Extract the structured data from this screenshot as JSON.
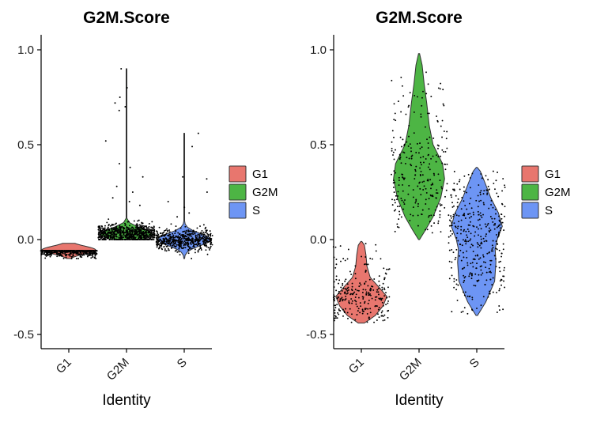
{
  "chart_data": [
    {
      "type": "violin",
      "title": "G2M.Score",
      "xlabel": "Identity",
      "ylabel": "",
      "ylim": [
        -0.58,
        1.05
      ],
      "yticks": [
        -0.5,
        0.0,
        0.5,
        1.0
      ],
      "ytick_labels": [
        "-0.5",
        "0.0",
        "0.5",
        "1.0"
      ],
      "categories": [
        "G1",
        "G2M",
        "S"
      ],
      "series": [
        {
          "name": "G1",
          "color": "#E8766E",
          "min": -0.1,
          "max": -0.02,
          "median": -0.055,
          "spread": 0.018,
          "n_points": 700,
          "outliers": []
        },
        {
          "name": "G2M",
          "color": "#4DB544",
          "min": 0.0,
          "max": 0.9,
          "median": 0.03,
          "spread": 0.025,
          "n_points": 750,
          "outliers": [
            0.8,
            0.72,
            0.68,
            0.7,
            0.75,
            0.9,
            0.52,
            0.4,
            0.38,
            0.33,
            0.28,
            0.25,
            0.22,
            0.2,
            0.18
          ]
        },
        {
          "name": "S",
          "color": "#6D95F4",
          "min": -0.1,
          "max": 0.56,
          "median": 0.0,
          "spread": 0.028,
          "n_points": 550,
          "outliers": [
            0.49,
            0.33,
            0.32,
            0.25,
            0.2,
            0.17,
            0.14,
            0.12,
            0.56
          ]
        }
      ],
      "legend": {
        "position": "right",
        "entries": [
          "G1",
          "G2M",
          "S"
        ]
      }
    },
    {
      "type": "violin",
      "title": "G2M.Score",
      "xlabel": "Identity",
      "ylabel": "",
      "ylim": [
        -0.58,
        1.05
      ],
      "yticks": [
        -0.5,
        0.0,
        0.5,
        1.0
      ],
      "ytick_labels": [
        "-0.5",
        "0.0",
        "0.5",
        "1.0"
      ],
      "categories": [
        "G1",
        "G2M",
        "S"
      ],
      "series": [
        {
          "name": "G1",
          "color": "#E8766E",
          "min": -0.44,
          "max": -0.01,
          "median": -0.3,
          "spread": 0.06,
          "n_points": 260,
          "profile": [
            [
              -0.44,
              0.12
            ],
            [
              -0.4,
              0.55
            ],
            [
              -0.35,
              0.85
            ],
            [
              -0.3,
              1.0
            ],
            [
              -0.26,
              0.75
            ],
            [
              -0.2,
              0.35
            ],
            [
              -0.14,
              0.22
            ],
            [
              -0.08,
              0.18
            ],
            [
              -0.03,
              0.12
            ],
            [
              -0.01,
              0.02
            ]
          ]
        },
        {
          "name": "G2M",
          "color": "#4DB544",
          "min": 0.0,
          "max": 0.98,
          "median": 0.36,
          "spread": 0.17,
          "n_points": 260,
          "profile": [
            [
              0.0,
              0.02
            ],
            [
              0.05,
              0.25
            ],
            [
              0.12,
              0.55
            ],
            [
              0.22,
              0.85
            ],
            [
              0.32,
              1.0
            ],
            [
              0.4,
              0.92
            ],
            [
              0.5,
              0.55
            ],
            [
              0.6,
              0.4
            ],
            [
              0.72,
              0.3
            ],
            [
              0.82,
              0.2
            ],
            [
              0.92,
              0.12
            ],
            [
              0.98,
              0.02
            ]
          ]
        },
        {
          "name": "S",
          "color": "#6D95F4",
          "min": -0.4,
          "max": 0.38,
          "median": -0.02,
          "spread": 0.17,
          "n_points": 380,
          "profile": [
            [
              -0.4,
              0.03
            ],
            [
              -0.33,
              0.35
            ],
            [
              -0.22,
              0.7
            ],
            [
              -0.12,
              0.75
            ],
            [
              -0.05,
              0.72
            ],
            [
              0.0,
              0.8
            ],
            [
              0.07,
              1.0
            ],
            [
              0.14,
              0.85
            ],
            [
              0.22,
              0.55
            ],
            [
              0.3,
              0.32
            ],
            [
              0.36,
              0.14
            ],
            [
              0.38,
              0.02
            ]
          ]
        }
      ],
      "legend": {
        "position": "right",
        "entries": [
          "G1",
          "G2M",
          "S"
        ]
      }
    }
  ]
}
